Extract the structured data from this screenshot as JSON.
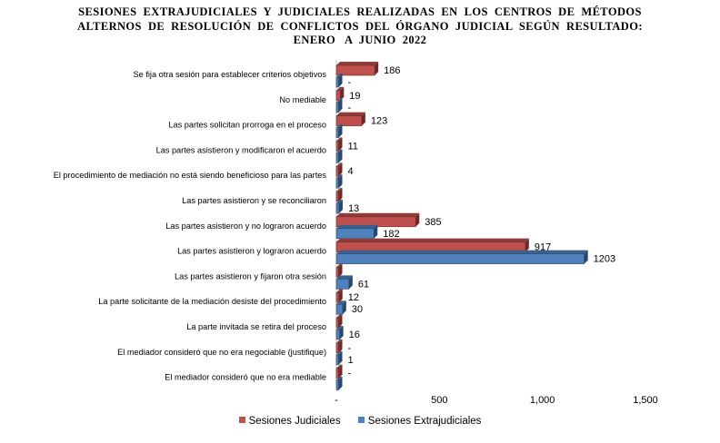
{
  "chart_data": {
    "type": "bar",
    "orientation": "horizontal",
    "title_lines": [
      "SESIONES  EXTRAJUDICIALES  Y  JUDICIALES  REALIZADAS  EN  LOS  CENTROS  DE  MÉTODOS",
      "ALTERNOS  DE  RESOLUCIÓN  DE  CONFLICTOS  DEL  ÓRGANO  JUDICIAL  SEGÚN  RESULTADO:",
      "ENERO   A  JUNIO  2022"
    ],
    "categories": [
      "Se fija otra sesión para establecer criterios objetivos",
      "No mediable",
      "Las partes solicitan prorroga en el proceso",
      "Las partes asistieron y modificaron el acuerdo",
      "El procedimiento de mediación no está siendo beneficioso para las partes",
      "Las partes asistieron y se reconciliaron",
      "Las partes asistieron y no lograron acuerdo",
      "Las partes asistieron y lograron acuerdo",
      "Las partes asistieron y fijaron otra sesión",
      "La parte solicitante de la mediación desiste del procedimiento",
      "La parte invitada se retira del proceso",
      "El mediador consideró que no era negociable (justifique)",
      "El mediador consideró que no era mediable"
    ],
    "series": [
      {
        "name": "Sesiones Judiciales",
        "color": "#c0504d",
        "values": [
          186,
          19,
          123,
          11,
          4,
          0,
          385,
          917,
          0,
          12,
          0,
          0,
          0
        ],
        "labels": [
          "186",
          "19",
          "123",
          "11",
          "4",
          "",
          "385",
          "917",
          "",
          "12",
          "",
          "-",
          "-"
        ]
      },
      {
        "name": "Sesiones Extrajudiciales",
        "color": "#4f81bd",
        "values": [
          0,
          0,
          0,
          0,
          0,
          13,
          182,
          1203,
          61,
          30,
          16,
          1,
          0
        ],
        "labels": [
          "-",
          "-",
          "",
          "",
          "",
          "13",
          "182",
          "1203",
          "61",
          "30",
          "16",
          "1",
          ""
        ]
      }
    ],
    "xlim": [
      0,
      1500
    ],
    "xticks": [
      "-",
      "500",
      "1,000",
      "1,500"
    ],
    "xtick_values": [
      0,
      500,
      1000,
      1500
    ],
    "grid": false,
    "legend_position": "bottom"
  }
}
